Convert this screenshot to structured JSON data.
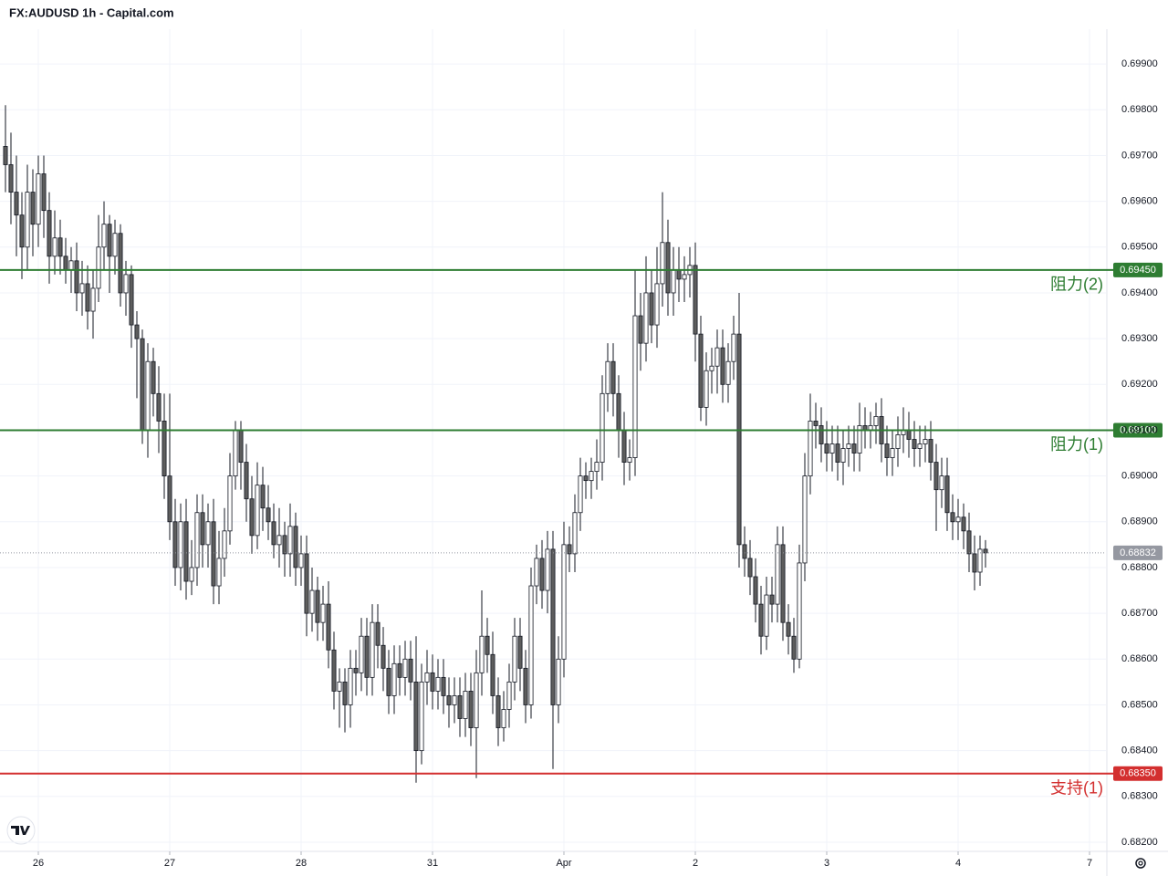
{
  "chart_data": {
    "type": "candlestick",
    "title": "FX:AUDUSD 1h - Capital.com",
    "x": [
      -6,
      -5,
      -4,
      -3,
      -2,
      -1,
      0,
      1,
      2,
      3,
      4,
      5,
      6,
      7,
      8,
      9,
      10,
      11,
      12,
      13,
      14,
      15,
      16,
      17,
      18,
      19,
      20,
      21,
      22,
      23,
      24,
      25,
      26,
      27,
      28,
      29,
      30,
      31,
      32,
      33,
      34,
      35,
      36,
      37,
      38,
      39,
      40,
      41,
      42,
      43,
      44,
      45,
      46,
      47,
      48,
      49,
      50,
      51,
      52,
      53,
      54,
      55,
      56,
      57,
      58,
      59,
      60,
      61,
      62,
      63,
      64,
      65,
      66,
      67,
      68,
      69,
      70,
      71,
      72,
      73,
      74,
      75,
      76,
      77,
      78,
      79,
      80,
      81,
      82,
      83,
      84,
      85,
      86,
      87,
      88,
      89,
      90,
      91,
      92,
      93,
      94,
      95,
      96,
      97,
      98,
      99,
      100,
      101,
      102,
      103,
      104,
      105,
      106,
      107,
      108,
      109,
      110,
      111,
      112,
      113,
      114,
      115,
      116,
      117,
      118,
      119,
      120,
      121,
      122,
      123,
      124,
      125,
      126,
      127,
      128,
      129,
      130,
      131,
      132,
      133,
      134,
      135,
      136,
      137,
      138,
      139,
      140,
      141,
      142,
      143,
      144,
      145,
      146,
      147,
      148,
      149,
      150,
      151,
      152,
      153,
      154,
      155,
      156,
      157,
      158,
      159,
      160,
      161,
      162,
      163,
      164,
      165,
      166,
      167,
      168,
      169,
      170,
      171,
      172,
      173
    ],
    "open": [
      0.6972,
      0.6968,
      0.6962,
      0.6957,
      0.695,
      0.6962,
      0.6955,
      0.6966,
      0.6958,
      0.6948,
      0.6952,
      0.6948,
      0.6945,
      0.6947,
      0.694,
      0.6942,
      0.6936,
      0.6941,
      0.695,
      0.6955,
      0.6948,
      0.6953,
      0.694,
      0.6944,
      0.6933,
      0.693,
      0.691,
      0.6925,
      0.6918,
      0.6912,
      0.69,
      0.689,
      0.688,
      0.689,
      0.6877,
      0.688,
      0.6892,
      0.6885,
      0.689,
      0.6876,
      0.6882,
      0.6888,
      0.69,
      0.691,
      0.6903,
      0.6895,
      0.6887,
      0.6898,
      0.6893,
      0.689,
      0.6885,
      0.6887,
      0.6883,
      0.6889,
      0.688,
      0.6883,
      0.687,
      0.6875,
      0.6868,
      0.6872,
      0.6862,
      0.6853,
      0.6855,
      0.685,
      0.6858,
      0.6857,
      0.6865,
      0.6856,
      0.6868,
      0.6863,
      0.6858,
      0.6852,
      0.6859,
      0.6856,
      0.686,
      0.6855,
      0.684,
      0.6855,
      0.6857,
      0.6853,
      0.6856,
      0.6852,
      0.685,
      0.6852,
      0.6847,
      0.6853,
      0.6845,
      0.6857,
      0.6865,
      0.6861,
      0.6852,
      0.6845,
      0.6849,
      0.6855,
      0.6865,
      0.6858,
      0.685,
      0.6876,
      0.6882,
      0.6875,
      0.6884,
      0.685,
      0.686,
      0.6885,
      0.6883,
      0.6892,
      0.69,
      0.6899,
      0.6901,
      0.6903,
      0.6918,
      0.6925,
      0.6918,
      0.691,
      0.6903,
      0.6904,
      0.6935,
      0.6929,
      0.694,
      0.6933,
      0.6942,
      0.6951,
      0.694,
      0.6945,
      0.6943,
      0.6944,
      0.6946,
      0.6931,
      0.6915,
      0.6923,
      0.6924,
      0.6928,
      0.692,
      0.6925,
      0.6931,
      0.6885,
      0.6882,
      0.6878,
      0.6872,
      0.6865,
      0.6874,
      0.6872,
      0.6885,
      0.6868,
      0.6865,
      0.686,
      0.6881,
      0.69,
      0.6912,
      0.6911,
      0.6907,
      0.6905,
      0.6907,
      0.6903,
      0.6906,
      0.6907,
      0.6905,
      0.6911,
      0.691,
      0.6911,
      0.6913,
      0.6907,
      0.6904,
      0.6906,
      0.6909,
      0.691,
      0.6908,
      0.6906,
      0.6907,
      0.6908,
      0.6903,
      0.6897,
      0.69,
      0.6892,
      0.689,
      0.6891,
      0.6888,
      0.6883,
      0.6879,
      0.6884
    ],
    "high": [
      0.6981,
      0.6975,
      0.697,
      0.6962,
      0.6968,
      0.6967,
      0.697,
      0.697,
      0.6962,
      0.6958,
      0.6956,
      0.6952,
      0.695,
      0.6951,
      0.6947,
      0.6946,
      0.6945,
      0.6957,
      0.696,
      0.6957,
      0.6956,
      0.6955,
      0.6947,
      0.6946,
      0.6936,
      0.6932,
      0.6929,
      0.6928,
      0.6924,
      0.6918,
      0.6918,
      0.6895,
      0.6894,
      0.6895,
      0.6886,
      0.6896,
      0.6896,
      0.6894,
      0.6895,
      0.6888,
      0.6893,
      0.6905,
      0.6912,
      0.6912,
      0.6907,
      0.69,
      0.6903,
      0.6902,
      0.6898,
      0.6894,
      0.6893,
      0.689,
      0.6894,
      0.6892,
      0.6887,
      0.6887,
      0.688,
      0.6878,
      0.6876,
      0.6877,
      0.6866,
      0.6858,
      0.6858,
      0.6862,
      0.6862,
      0.6869,
      0.6869,
      0.6872,
      0.6872,
      0.6867,
      0.6862,
      0.6863,
      0.6863,
      0.6864,
      0.6864,
      0.6865,
      0.6859,
      0.6862,
      0.6861,
      0.686,
      0.686,
      0.6856,
      0.6856,
      0.6856,
      0.6857,
      0.6857,
      0.6862,
      0.6875,
      0.6869,
      0.6866,
      0.6856,
      0.6853,
      0.6859,
      0.6869,
      0.6869,
      0.6862,
      0.688,
      0.6885,
      0.6886,
      0.6888,
      0.6888,
      0.6865,
      0.689,
      0.6889,
      0.6896,
      0.6904,
      0.6903,
      0.6904,
      0.6908,
      0.6922,
      0.6929,
      0.6929,
      0.6922,
      0.6914,
      0.6908,
      0.6945,
      0.694,
      0.6948,
      0.6945,
      0.695,
      0.6962,
      0.6956,
      0.695,
      0.695,
      0.6948,
      0.695,
      0.6951,
      0.6935,
      0.6927,
      0.6928,
      0.6932,
      0.6932,
      0.6929,
      0.6935,
      0.694,
      0.6889,
      0.6886,
      0.6882,
      0.6876,
      0.6878,
      0.6878,
      0.6889,
      0.6889,
      0.6872,
      0.6869,
      0.6885,
      0.6905,
      0.6918,
      0.6916,
      0.6915,
      0.6912,
      0.6911,
      0.6911,
      0.691,
      0.6911,
      0.6911,
      0.6916,
      0.6915,
      0.6914,
      0.6916,
      0.6917,
      0.6911,
      0.691,
      0.6913,
      0.6915,
      0.6914,
      0.6912,
      0.6911,
      0.6911,
      0.6912,
      0.6907,
      0.6904,
      0.6904,
      0.6896,
      0.6895,
      0.6894,
      0.6892,
      0.6887,
      0.6887,
      0.6886
    ],
    "low": [
      0.6962,
      0.6955,
      0.6948,
      0.6943,
      0.6945,
      0.6948,
      0.695,
      0.6952,
      0.6942,
      0.6944,
      0.6944,
      0.6942,
      0.694,
      0.6936,
      0.6935,
      0.6932,
      0.693,
      0.6938,
      0.6945,
      0.694,
      0.6944,
      0.6937,
      0.6935,
      0.6928,
      0.6917,
      0.6907,
      0.6904,
      0.6913,
      0.6905,
      0.6895,
      0.6886,
      0.6876,
      0.6875,
      0.6873,
      0.6874,
      0.6876,
      0.688,
      0.688,
      0.6872,
      0.6872,
      0.6878,
      0.6885,
      0.6897,
      0.6897,
      0.689,
      0.6883,
      0.6884,
      0.6888,
      0.6886,
      0.6882,
      0.688,
      0.6878,
      0.6878,
      0.6876,
      0.6876,
      0.6865,
      0.6866,
      0.6864,
      0.6864,
      0.6858,
      0.6849,
      0.6845,
      0.6844,
      0.6845,
      0.6852,
      0.6853,
      0.6852,
      0.6852,
      0.6858,
      0.6853,
      0.6848,
      0.6848,
      0.6852,
      0.6852,
      0.6851,
      0.6833,
      0.6837,
      0.685,
      0.6849,
      0.6849,
      0.6848,
      0.6845,
      0.6846,
      0.6843,
      0.6843,
      0.6841,
      0.6834,
      0.6852,
      0.6857,
      0.6848,
      0.6841,
      0.6842,
      0.6845,
      0.6851,
      0.6853,
      0.6846,
      0.6847,
      0.6872,
      0.6871,
      0.687,
      0.6836,
      0.6846,
      0.6856,
      0.6879,
      0.6879,
      0.6888,
      0.6895,
      0.6895,
      0.6897,
      0.6899,
      0.6914,
      0.6913,
      0.6904,
      0.6898,
      0.6899,
      0.69,
      0.6923,
      0.6925,
      0.6929,
      0.6928,
      0.6937,
      0.6935,
      0.6935,
      0.6938,
      0.6938,
      0.6939,
      0.6925,
      0.6912,
      0.6911,
      0.6918,
      0.6918,
      0.6916,
      0.6916,
      0.6921,
      0.688,
      0.6878,
      0.6874,
      0.6868,
      0.6861,
      0.6862,
      0.6868,
      0.6868,
      0.6864,
      0.6861,
      0.6857,
      0.6858,
      0.6877,
      0.6896,
      0.6906,
      0.6903,
      0.6901,
      0.6901,
      0.6899,
      0.6898,
      0.6902,
      0.6901,
      0.6901,
      0.6906,
      0.6906,
      0.6907,
      0.6903,
      0.69,
      0.69,
      0.6902,
      0.6905,
      0.6904,
      0.6902,
      0.6902,
      0.6903,
      0.6899,
      0.6888,
      0.6893,
      0.6888,
      0.6886,
      0.6886,
      0.6884,
      0.6879,
      0.6875,
      0.6876,
      0.688
    ],
    "close": [
      0.6968,
      0.6962,
      0.6957,
      0.695,
      0.6962,
      0.6955,
      0.6966,
      0.6958,
      0.6948,
      0.6952,
      0.6948,
      0.6945,
      0.6947,
      0.694,
      0.6942,
      0.6936,
      0.6941,
      0.695,
      0.6955,
      0.6948,
      0.6953,
      0.694,
      0.6944,
      0.6933,
      0.693,
      0.691,
      0.6925,
      0.6918,
      0.6912,
      0.69,
      0.689,
      0.688,
      0.689,
      0.6877,
      0.688,
      0.6892,
      0.6885,
      0.689,
      0.6876,
      0.6882,
      0.6888,
      0.69,
      0.691,
      0.6903,
      0.6895,
      0.6887,
      0.6898,
      0.6893,
      0.689,
      0.6885,
      0.6887,
      0.6883,
      0.6889,
      0.688,
      0.6883,
      0.687,
      0.6875,
      0.6868,
      0.6872,
      0.6862,
      0.6853,
      0.6855,
      0.685,
      0.6858,
      0.6857,
      0.6865,
      0.6856,
      0.6868,
      0.6863,
      0.6858,
      0.6852,
      0.6859,
      0.6856,
      0.686,
      0.6855,
      0.684,
      0.6855,
      0.6857,
      0.6853,
      0.6856,
      0.6852,
      0.685,
      0.6852,
      0.6847,
      0.6853,
      0.6845,
      0.6857,
      0.6865,
      0.6861,
      0.6852,
      0.6845,
      0.6849,
      0.6855,
      0.6865,
      0.6858,
      0.685,
      0.6876,
      0.6882,
      0.6875,
      0.6884,
      0.685,
      0.686,
      0.6885,
      0.6883,
      0.6892,
      0.69,
      0.6899,
      0.6901,
      0.6903,
      0.6918,
      0.6925,
      0.6918,
      0.691,
      0.6903,
      0.6904,
      0.6935,
      0.6929,
      0.694,
      0.6933,
      0.6942,
      0.6951,
      0.694,
      0.6945,
      0.6943,
      0.6944,
      0.6946,
      0.6931,
      0.6915,
      0.6923,
      0.6924,
      0.6928,
      0.692,
      0.6925,
      0.6931,
      0.6885,
      0.6882,
      0.6878,
      0.6872,
      0.6865,
      0.6874,
      0.6872,
      0.6885,
      0.6868,
      0.6865,
      0.686,
      0.6881,
      0.69,
      0.6912,
      0.6911,
      0.6907,
      0.6905,
      0.6907,
      0.6903,
      0.6906,
      0.6907,
      0.6905,
      0.6911,
      0.691,
      0.6911,
      0.6913,
      0.6907,
      0.6904,
      0.6906,
      0.6909,
      0.691,
      0.6908,
      0.6906,
      0.6907,
      0.6908,
      0.6903,
      0.6897,
      0.69,
      0.6892,
      0.689,
      0.6891,
      0.6888,
      0.6883,
      0.6879,
      0.6884,
      0.68832
    ],
    "up_color": "#ffffff",
    "down_color": "#5d5d5d",
    "wick_color": "#131722",
    "xlim": [
      -7,
      195
    ],
    "xticks": [
      {
        "value": 0,
        "label": "26"
      },
      {
        "value": 24,
        "label": "27"
      },
      {
        "value": 48,
        "label": "28"
      },
      {
        "value": 72,
        "label": "31"
      },
      {
        "value": 96,
        "label": "Apr"
      },
      {
        "value": 120,
        "label": "2"
      },
      {
        "value": 144,
        "label": "3"
      },
      {
        "value": 168,
        "label": "4"
      },
      {
        "value": 192,
        "label": "7"
      }
    ],
    "ylim": [
      0.6818,
      0.69976
    ],
    "yticks": [
      {
        "value": 0.699,
        "label": "0.69900"
      },
      {
        "value": 0.698,
        "label": "0.69800"
      },
      {
        "value": 0.697,
        "label": "0.69700"
      },
      {
        "value": 0.696,
        "label": "0.69600"
      },
      {
        "value": 0.695,
        "label": "0.69500"
      },
      {
        "value": 0.694,
        "label": "0.69400"
      },
      {
        "value": 0.693,
        "label": "0.69300"
      },
      {
        "value": 0.692,
        "label": "0.69200"
      },
      {
        "value": 0.691,
        "label": "0.69100"
      },
      {
        "value": 0.69,
        "label": "0.69000"
      },
      {
        "value": 0.689,
        "label": "0.68900"
      },
      {
        "value": 0.688,
        "label": "0.68800"
      },
      {
        "value": 0.687,
        "label": "0.68700"
      },
      {
        "value": 0.686,
        "label": "0.68600"
      },
      {
        "value": 0.685,
        "label": "0.68500"
      },
      {
        "value": 0.684,
        "label": "0.68400"
      },
      {
        "value": 0.683,
        "label": "0.68300"
      },
      {
        "value": 0.682,
        "label": "0.68200"
      }
    ],
    "grid": true,
    "levels": [
      {
        "name": "阻力(2)",
        "value": 0.6945,
        "value_label": "0.69450",
        "color": "#2e7d32"
      },
      {
        "name": "阻力(1)",
        "value": 0.691,
        "value_label": "0.69100",
        "color": "#2e7d32"
      },
      {
        "name": "支持(1)",
        "value": 0.6835,
        "value_label": "0.68350",
        "color": "#d32f2f"
      }
    ],
    "last_price": 0.68832,
    "last_price_color": "#9598a1"
  }
}
